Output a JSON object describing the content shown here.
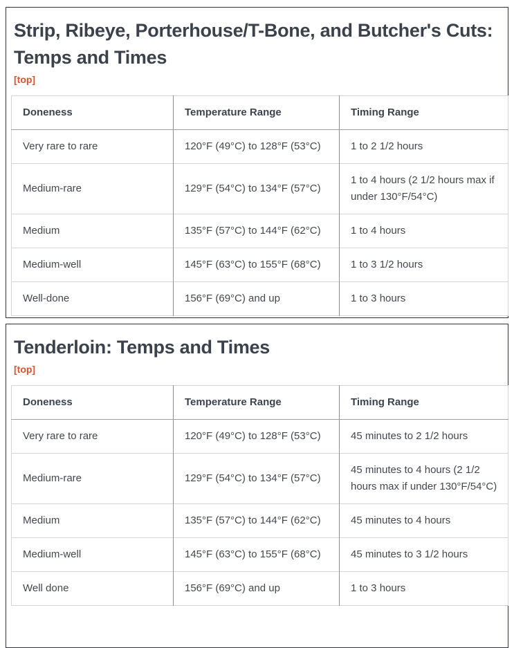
{
  "colors": {
    "accent_link": "#e2502b",
    "heading_text": "#3b424c",
    "body_text": "#43474d",
    "card_border": "#2f3337",
    "grid_light": "#d5d5d5",
    "grid_medium": "#9d9ea0",
    "column_divider": "#8f9092"
  },
  "sections": [
    {
      "title": "Strip, Ribeye, Porterhouse/T-Bone, and Butcher's Cuts: Temps and Times",
      "top_link": "[top]",
      "table": {
        "headers": [
          "Doneness",
          "Temperature Range",
          "Timing Range"
        ],
        "rows": [
          [
            "Very rare to rare",
            "120°F (49°C) to 128°F (53°C)",
            "1 to 2 1/2 hours"
          ],
          [
            "Medium-rare",
            "129°F (54°C) to 134°F (57°C)",
            "1 to 4 hours (2 1/2 hours max if under 130°F/54°C)"
          ],
          [
            "Medium",
            "135°F (57°C) to 144°F (62°C)",
            "1 to 4 hours"
          ],
          [
            "Medium-well",
            "145°F (63°C) to 155°F (68°C)",
            "1 to 3 1/2 hours"
          ],
          [
            "Well-done",
            "156°F (69°C) and up",
            "1 to 3 hours"
          ]
        ]
      }
    },
    {
      "title": "Tenderloin: Temps and Times",
      "top_link": "[top]",
      "table": {
        "headers": [
          "Doneness",
          "Temperature Range",
          "Timing Range"
        ],
        "rows": [
          [
            "Very rare to rare",
            "120°F (49°C) to 128°F (53°C)",
            "45 minutes to 2 1/2 hours"
          ],
          [
            "Medium-rare",
            "129°F (54°C) to 134°F (57°C)",
            "45 minutes to 4 hours (2 1/2 hours max if under 130°F/54°C)"
          ],
          [
            "Medium",
            "135°F (57°C) to 144°F (62°C)",
            "45 minutes to 4 hours"
          ],
          [
            "Medium-well",
            "145°F (63°C) to 155°F (68°C)",
            "45 minutes to 3 1/2 hours"
          ],
          [
            "Well done",
            "156°F (69°C) and up",
            "1 to 3 hours"
          ]
        ]
      }
    }
  ]
}
